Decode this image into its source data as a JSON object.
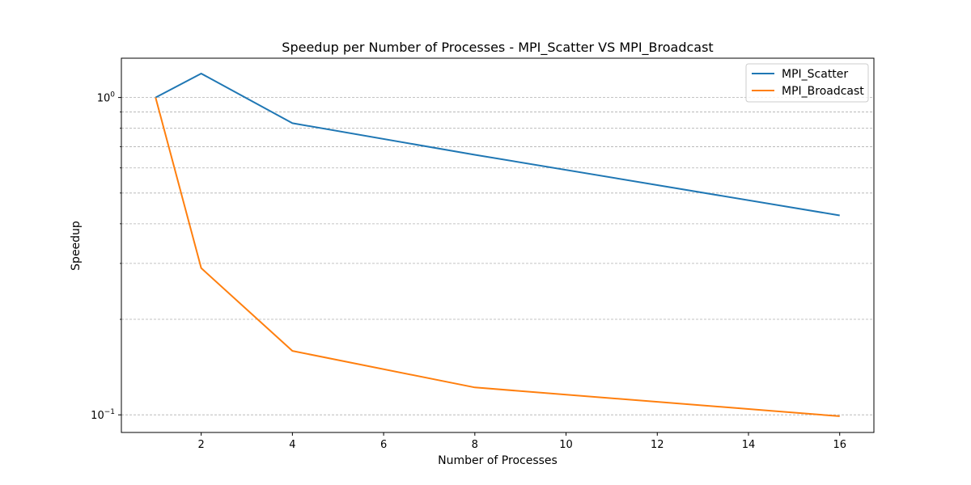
{
  "chart_data": {
    "type": "line",
    "title": "Speedup per Number of Processes - MPI_Scatter VS MPI_Broadcast",
    "xlabel": "Number of Processes",
    "ylabel": "Speedup",
    "xlim": [
      0.25,
      16.75
    ],
    "ylim": [
      0.088,
      1.33
    ],
    "yscale": "log",
    "grid": "y-major-and-minor",
    "legend_position": "top-right",
    "x_ticks": [
      2,
      4,
      6,
      8,
      10,
      12,
      14,
      16
    ],
    "x_tick_labels": [
      "2",
      "4",
      "6",
      "8",
      "10",
      "12",
      "14",
      "16"
    ],
    "y_major_ticks": [
      {
        "value": 0.1,
        "base": "10",
        "exp": "−1"
      },
      {
        "value": 1.0,
        "base": "10",
        "exp": "0"
      }
    ],
    "y_minor_ticks": [
      0.2,
      0.3,
      0.4,
      0.5,
      0.6,
      0.7,
      0.8,
      0.9
    ],
    "x": [
      1,
      2,
      4,
      8,
      16
    ],
    "series": [
      {
        "name": "MPI_Scatter",
        "color": "#1f77b4",
        "values": [
          1.0,
          1.19,
          0.83,
          0.66,
          0.425
        ]
      },
      {
        "name": "MPI_Broadcast",
        "color": "#ff7f0e",
        "values": [
          1.0,
          0.29,
          0.159,
          0.122,
          0.099
        ]
      }
    ]
  }
}
